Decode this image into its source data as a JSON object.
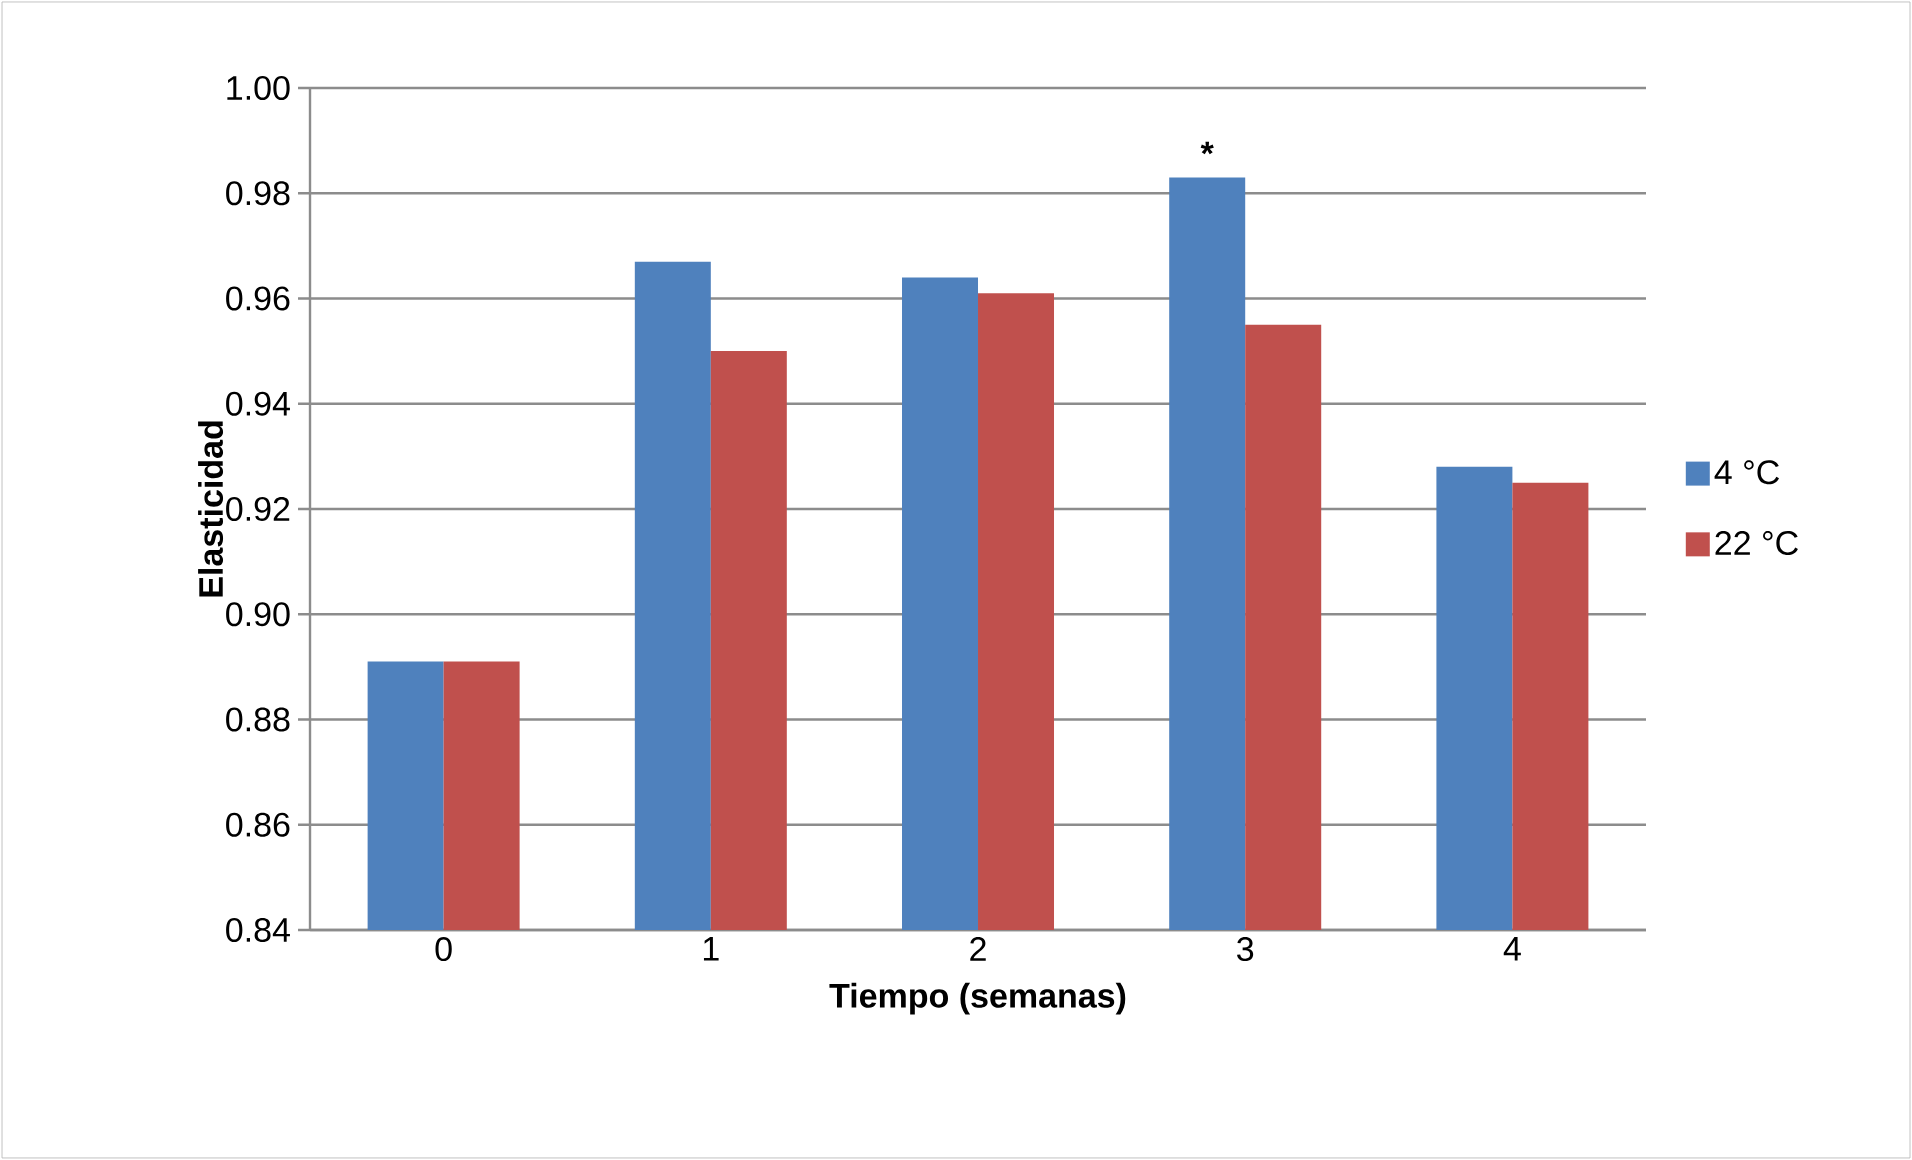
{
  "chart_data": {
    "type": "bar",
    "xlabel": "Tiempo (semanas)",
    "ylabel": "Elasticidad",
    "categories": [
      "0",
      "1",
      "2",
      "3",
      "4"
    ],
    "series": [
      {
        "name": "4 °C",
        "color": "#4f81bd",
        "values": [
          0.891,
          0.967,
          0.964,
          0.983,
          0.928
        ]
      },
      {
        "name": "22 °C",
        "color": "#c0504d",
        "values": [
          0.891,
          0.95,
          0.961,
          0.955,
          0.925
        ]
      }
    ],
    "ylim": [
      0.84,
      1.0
    ],
    "yticks": [
      {
        "value": 0.84,
        "label": "0.84"
      },
      {
        "value": 0.86,
        "label": "0.86"
      },
      {
        "value": 0.88,
        "label": "0.88"
      },
      {
        "value": 0.9,
        "label": "0.90"
      },
      {
        "value": 0.92,
        "label": "0.92"
      },
      {
        "value": 0.94,
        "label": "0.94"
      },
      {
        "value": 0.96,
        "label": "0.96"
      },
      {
        "value": 0.98,
        "label": "0.98"
      },
      {
        "value": 1.0,
        "label": "1.00"
      }
    ],
    "annotations": [
      {
        "text": "*",
        "x": "3",
        "y": 0.983
      }
    ],
    "grid": "y",
    "legend": "right"
  }
}
